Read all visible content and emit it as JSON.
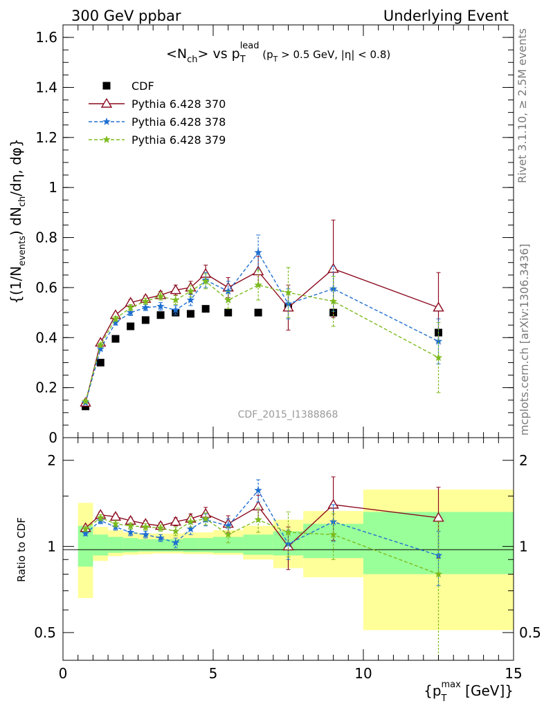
{
  "header": {
    "left": "300 GeV ppbar",
    "right": "Underlying Event"
  },
  "side_text": {
    "rivet": "Rivet 3.1.10, ≥ 2.5M events",
    "mcplots": "mcplots.cern.ch [arXiv:1306.3436]"
  },
  "watermark": "CDF_2015_I1388868",
  "axes": {
    "y_top_label": "{(1/N_events) dN_ch/dη, dφ}",
    "y_bottom_label": "Ratio to CDF",
    "x_label": "{p_T^max [GeV]}"
  },
  "chart_data": [
    {
      "type": "scatter",
      "panel": "main",
      "title": "<N_ch> vs p_T^lead (p_T > 0.5 GeV, |η| < 0.8)",
      "xlim": [
        0,
        15
      ],
      "ylim": [
        0,
        1.65
      ],
      "yticks": [
        0,
        0.2,
        0.4,
        0.6,
        0.8,
        1,
        1.2,
        1.4,
        1.6
      ],
      "ytick_labels": [
        "0",
        "0.2",
        "0.4",
        "0.6",
        "0.8",
        "1",
        "1.2",
        "1.4",
        "1.6"
      ],
      "legend_position": "top-left",
      "series": [
        {
          "name": "CDF",
          "color": "#000000",
          "marker": "square",
          "x": [
            0.75,
            1.25,
            1.75,
            2.25,
            2.75,
            3.25,
            3.75,
            4.25,
            4.75,
            5.5,
            6.5,
            7.5,
            9.0,
            12.5
          ],
          "y": [
            0.125,
            0.3,
            0.395,
            0.445,
            0.47,
            0.49,
            0.5,
            0.495,
            0.515,
            0.5,
            0.5,
            0.52,
            0.5,
            0.42
          ],
          "xerr": [
            0.25,
            0.25,
            0.25,
            0.25,
            0.25,
            0.25,
            0.25,
            0.25,
            0.25,
            0.5,
            0.5,
            0.5,
            1.0,
            2.5
          ],
          "yerr": [
            0,
            0,
            0,
            0,
            0,
            0,
            0,
            0,
            0,
            0,
            0,
            0,
            0,
            0
          ]
        },
        {
          "name": "Pythia 6.428 370",
          "color": "#8b0a1f",
          "marker": "triangle",
          "dash": "solid",
          "x": [
            0.75,
            1.25,
            1.75,
            2.25,
            2.75,
            3.25,
            3.75,
            4.25,
            4.75,
            5.5,
            6.5,
            7.5,
            9.0,
            12.5
          ],
          "y": [
            0.14,
            0.38,
            0.49,
            0.54,
            0.555,
            0.57,
            0.59,
            0.6,
            0.655,
            0.6,
            0.665,
            0.52,
            0.675,
            0.52
          ],
          "yerr": [
            0.005,
            0.008,
            0.01,
            0.012,
            0.012,
            0.015,
            0.02,
            0.025,
            0.035,
            0.04,
            0.06,
            0.09,
            0.195,
            0.14
          ]
        },
        {
          "name": "Pythia 6.428 378",
          "color": "#1f6fd1",
          "marker": "star",
          "dash": "dashed",
          "x": [
            0.75,
            1.25,
            1.75,
            2.25,
            2.75,
            3.25,
            3.75,
            4.25,
            4.75,
            5.5,
            6.5,
            7.5,
            9.0,
            12.5
          ],
          "y": [
            0.14,
            0.355,
            0.46,
            0.5,
            0.52,
            0.525,
            0.51,
            0.55,
            0.63,
            0.585,
            0.74,
            0.535,
            0.595,
            0.385
          ],
          "yerr": [
            0.005,
            0.008,
            0.01,
            0.012,
            0.012,
            0.015,
            0.018,
            0.022,
            0.03,
            0.04,
            0.07,
            0.06,
            0.09,
            0.09
          ]
        },
        {
          "name": "Pythia 6.428 379",
          "color": "#7dbb1f",
          "marker": "star",
          "dash": "dashed",
          "x": [
            0.75,
            1.25,
            1.75,
            2.25,
            2.75,
            3.25,
            3.75,
            4.25,
            4.75,
            5.5,
            6.5,
            7.5,
            9.0,
            12.5
          ],
          "y": [
            0.145,
            0.37,
            0.475,
            0.52,
            0.545,
            0.565,
            0.55,
            0.585,
            0.625,
            0.55,
            0.61,
            0.58,
            0.545,
            0.32
          ],
          "yerr": [
            0.005,
            0.008,
            0.01,
            0.012,
            0.012,
            0.015,
            0.018,
            0.022,
            0.03,
            0.035,
            0.06,
            0.1,
            0.1,
            0.14
          ]
        }
      ]
    },
    {
      "type": "scatter",
      "panel": "ratio",
      "xlim": [
        0,
        15
      ],
      "ylim": [
        0.4,
        2.4
      ],
      "yscale": "log",
      "xticks": [
        0,
        5,
        10,
        15
      ],
      "xtick_labels": [
        "0",
        "5",
        "10",
        "15"
      ],
      "yticks": [
        0.5,
        1,
        2
      ],
      "ytick_labels": [
        "0.5",
        "1",
        "2"
      ],
      "bands": {
        "bin_edges": [
          0.5,
          1.0,
          1.5,
          2.0,
          2.5,
          3.0,
          3.5,
          4.0,
          4.5,
          5.0,
          6.0,
          7.0,
          8.0,
          10.0,
          15.0
        ],
        "green_low": [
          0.85,
          0.93,
          0.95,
          0.955,
          0.96,
          0.96,
          0.96,
          0.955,
          0.955,
          0.95,
          0.935,
          0.93,
          0.91,
          0.8
        ],
        "green_high": [
          1.18,
          1.1,
          1.08,
          1.07,
          1.06,
          1.06,
          1.06,
          1.07,
          1.07,
          1.08,
          1.1,
          1.13,
          1.2,
          1.32
        ],
        "yellow_low": [
          0.66,
          0.89,
          0.925,
          0.935,
          0.94,
          0.945,
          0.945,
          0.94,
          0.94,
          0.935,
          0.9,
          0.84,
          0.78,
          0.51
        ],
        "yellow_high": [
          1.42,
          1.17,
          1.14,
          1.12,
          1.11,
          1.11,
          1.11,
          1.12,
          1.12,
          1.14,
          1.18,
          1.24,
          1.33,
          1.58
        ]
      },
      "series": [
        {
          "name": "Pythia 6.428 370",
          "color": "#8b0a1f",
          "marker": "triangle",
          "dash": "solid",
          "x": [
            0.75,
            1.25,
            1.75,
            2.25,
            2.75,
            3.25,
            3.75,
            4.25,
            4.75,
            5.5,
            6.5,
            7.5,
            9.0,
            12.5
          ],
          "y": [
            1.16,
            1.29,
            1.27,
            1.23,
            1.2,
            1.18,
            1.22,
            1.25,
            1.3,
            1.2,
            1.38,
            1.0,
            1.4,
            1.26
          ],
          "yerr": [
            0.02,
            0.03,
            0.03,
            0.03,
            0.03,
            0.03,
            0.04,
            0.05,
            0.07,
            0.08,
            0.13,
            0.17,
            0.35,
            0.35
          ]
        },
        {
          "name": "Pythia 6.428 378",
          "color": "#1f6fd1",
          "marker": "star",
          "dash": "dashed",
          "x": [
            0.75,
            1.25,
            1.75,
            2.25,
            2.75,
            3.25,
            3.75,
            4.25,
            4.75,
            5.5,
            6.5,
            7.5,
            9.0,
            12.5
          ],
          "y": [
            1.11,
            1.23,
            1.17,
            1.12,
            1.1,
            1.07,
            1.03,
            1.15,
            1.24,
            1.18,
            1.57,
            1.02,
            1.22,
            0.93
          ],
          "yerr": [
            0.02,
            0.03,
            0.03,
            0.03,
            0.03,
            0.03,
            0.04,
            0.05,
            0.06,
            0.07,
            0.14,
            0.12,
            0.18,
            0.2
          ]
        },
        {
          "name": "Pythia 6.428 379",
          "color": "#7dbb1f",
          "marker": "star",
          "dash": "dashed",
          "x": [
            0.75,
            1.25,
            1.75,
            2.25,
            2.75,
            3.25,
            3.75,
            4.25,
            4.75,
            5.5,
            6.5,
            7.5,
            9.0,
            12.5
          ],
          "y": [
            1.15,
            1.26,
            1.2,
            1.18,
            1.17,
            1.16,
            1.13,
            1.22,
            1.25,
            1.1,
            1.24,
            1.12,
            1.1,
            0.8
          ],
          "yerr": [
            0.02,
            0.03,
            0.03,
            0.03,
            0.03,
            0.03,
            0.04,
            0.05,
            0.06,
            0.07,
            0.12,
            0.2,
            0.2,
            0.42
          ]
        }
      ]
    }
  ]
}
